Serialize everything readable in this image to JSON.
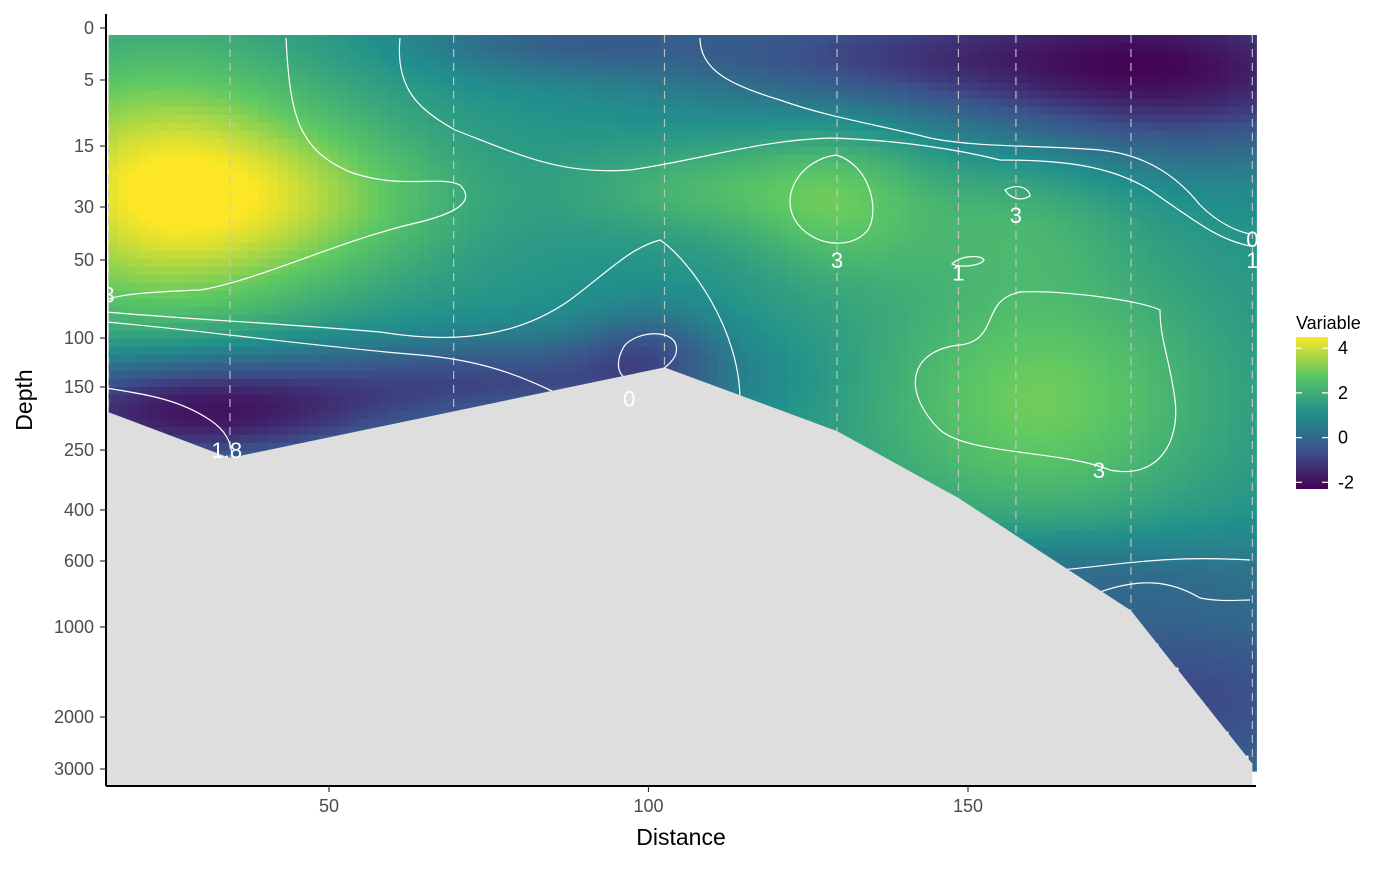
{
  "chart_data": {
    "type": "heatmap",
    "title": "",
    "xlabel": "Distance",
    "ylabel": "Depth",
    "xlim": [
      15,
      195
    ],
    "x_ticks": [
      50,
      100,
      150
    ],
    "y_scale": "reversed, compressed (depth transform)",
    "y_ticks": [
      0,
      5,
      15,
      30,
      50,
      100,
      150,
      250,
      400,
      600,
      1000,
      2000,
      3000
    ],
    "y_tick_labels": [
      "0",
      "5",
      "15",
      "30",
      "50",
      "100",
      "150",
      "250",
      "400",
      "600",
      "1000",
      "2000",
      "3000"
    ],
    "colorscale": "viridis",
    "colorscale_colors": [
      "#440154",
      "#3b528b",
      "#21908c",
      "#5dc863",
      "#fde725"
    ],
    "legend": {
      "title": "Variable",
      "placement": "right",
      "range": [
        -2.3,
        4.5
      ],
      "ticks": [
        4,
        2,
        0,
        -2
      ],
      "tick_labels": [
        "4",
        "2",
        "0",
        "-2"
      ]
    },
    "station_distances": [
      15.5,
      34.5,
      69.5,
      102.5,
      129.5,
      148.5,
      157.5,
      175.5,
      194.5
    ],
    "seafloor_color": "#dedede",
    "seafloor_profile": {
      "distance": [
        15.5,
        34.5,
        102.5,
        129.5,
        148.5,
        175.5,
        194.5
      ],
      "depth": [
        190,
        270,
        130,
        220,
        370,
        900,
        2900
      ]
    },
    "contour_labels": [
      {
        "text": "3",
        "distance": 15.5,
        "depth": 72
      },
      {
        "text": "3",
        "distance": 129.5,
        "depth": 50
      },
      {
        "text": "3",
        "distance": 157.5,
        "depth": 33
      },
      {
        "text": "3",
        "distance": 170.5,
        "depth": 300
      },
      {
        "text": "1",
        "distance": 148.5,
        "depth": 58
      },
      {
        "text": "0",
        "distance": 194.5,
        "depth": 42
      },
      {
        "text": "1",
        "distance": 194.5,
        "depth": 50
      },
      {
        "text": "0",
        "distance": 97,
        "depth": 168
      },
      {
        "text": "1.8",
        "distance": 34,
        "depth": 250
      }
    ]
  }
}
